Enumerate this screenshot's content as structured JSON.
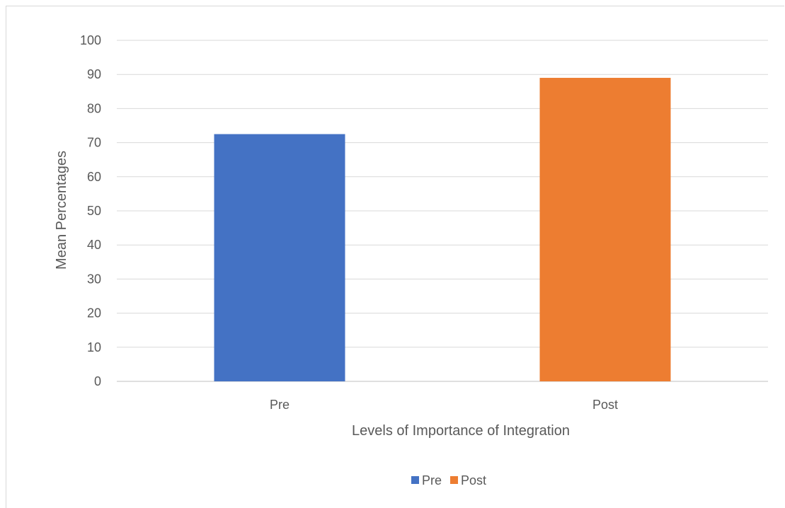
{
  "chart_data": {
    "type": "bar",
    "categories": [
      "Pre",
      "Post"
    ],
    "values": [
      72.5,
      89
    ],
    "colors": [
      "#4472C4",
      "#ED7D31"
    ],
    "xlabel": "Levels of Importance of Integration",
    "ylabel": "Mean Percentages",
    "ylim": [
      0,
      100
    ],
    "yticks": [
      0,
      10,
      20,
      30,
      40,
      50,
      60,
      70,
      80,
      90,
      100
    ],
    "grid": true,
    "legend": {
      "position": "bottom",
      "entries": [
        {
          "label": "Pre",
          "color": "#4472C4"
        },
        {
          "label": "Post",
          "color": "#ED7D31"
        }
      ]
    }
  }
}
